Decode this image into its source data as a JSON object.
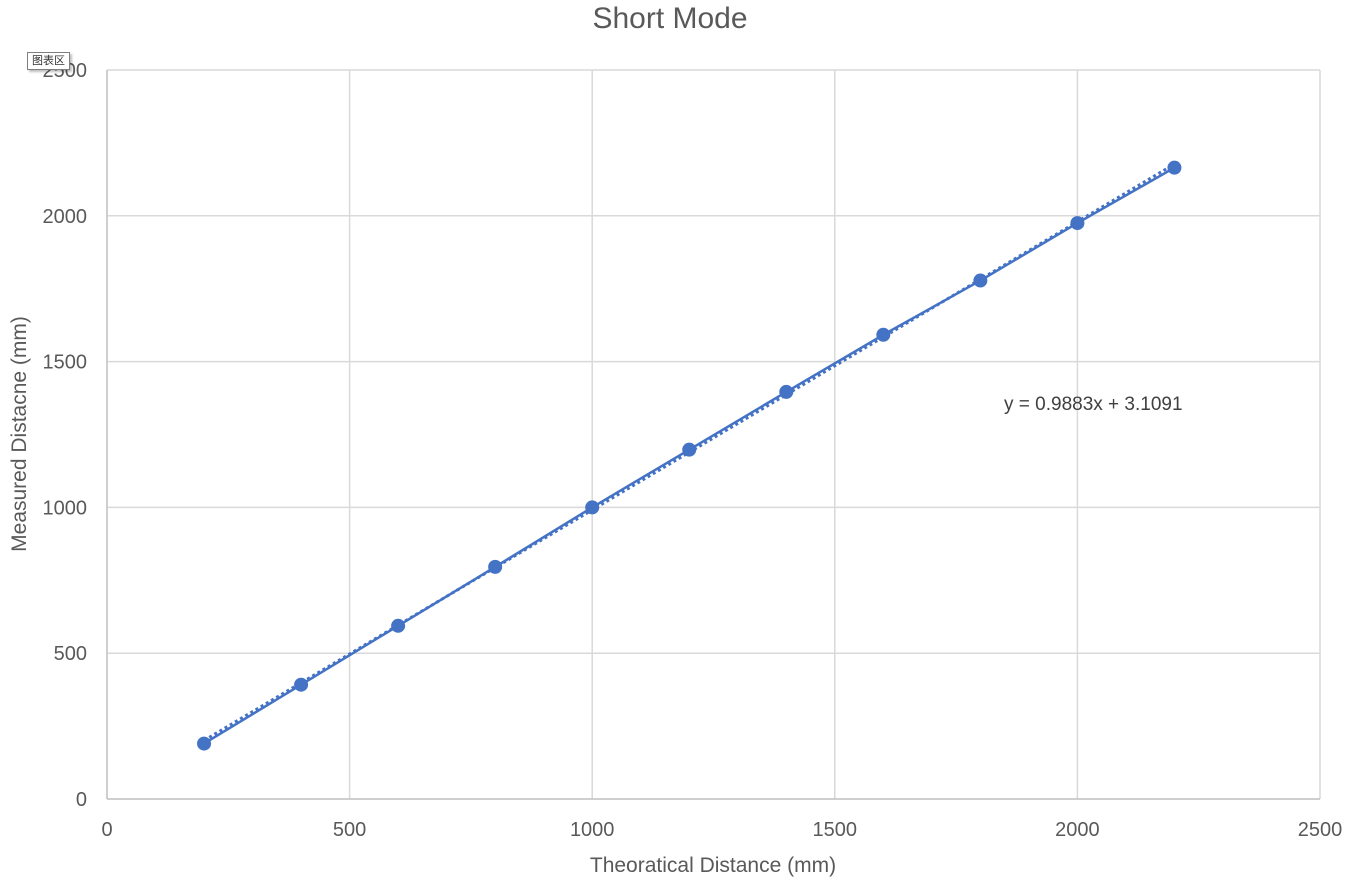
{
  "chart_data": {
    "type": "scatter",
    "title": "Short Mode",
    "xlabel": "Theoratical Distance (mm)",
    "ylabel": "Measured Distacne (mm)",
    "xlim": [
      0,
      2500
    ],
    "ylim": [
      0,
      2500
    ],
    "x_ticks": [
      "0",
      "500",
      "1000",
      "1500",
      "2000",
      "2500"
    ],
    "y_ticks": [
      "0",
      "500",
      "1000",
      "1500",
      "2000",
      "2500"
    ],
    "grid": true,
    "series": [
      {
        "x": [
          200,
          400,
          600,
          800,
          1000,
          1200,
          1400,
          1600,
          1800,
          2000,
          2200
        ],
        "y": [
          190,
          392,
          594,
          796,
          1000,
          1198,
          1396,
          1592,
          1778,
          1975,
          2165
        ],
        "color": "#4472c4",
        "connected": true
      }
    ],
    "trendline": {
      "slope": 0.9883,
      "intercept": 3.1091,
      "equation": "y = 0.9883x + 3.1091",
      "style": "dotted",
      "color": "#4472c4"
    }
  },
  "tooltip": {
    "label": "图表区"
  }
}
